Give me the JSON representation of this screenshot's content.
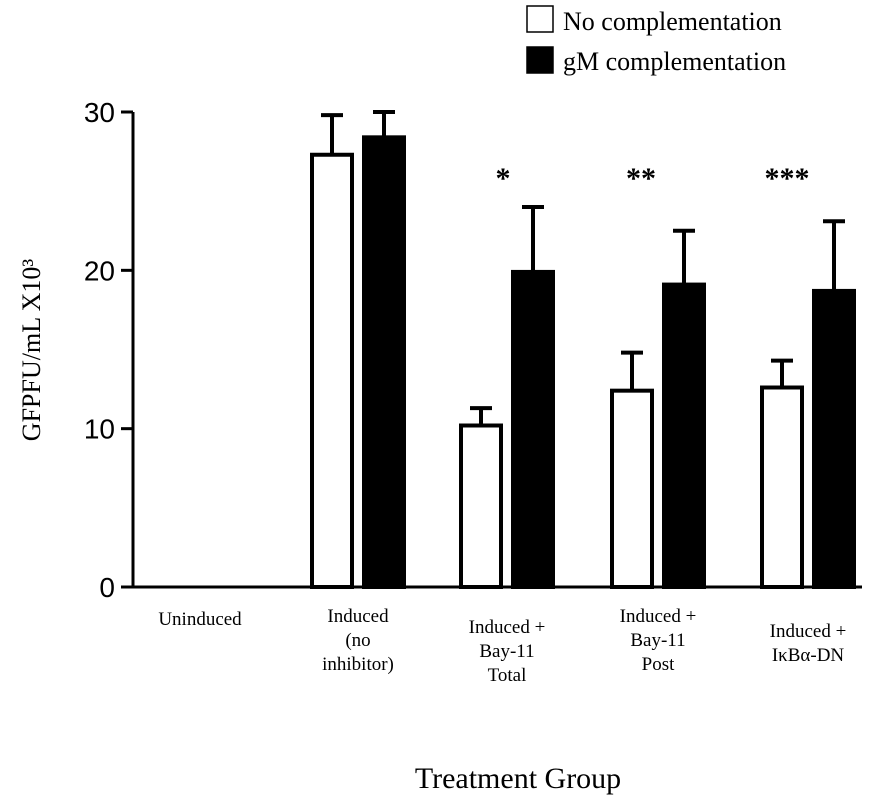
{
  "chart_data": {
    "type": "bar",
    "ylabel": "GFPFU/mL  X10³",
    "xlabel": "Treatment Group",
    "ylim": [
      0,
      30
    ],
    "yticks": [
      "0",
      "10",
      "20",
      "30"
    ],
    "categories": [
      [
        "Uninduced"
      ],
      [
        "Induced",
        "(no",
        "inhibitor)"
      ],
      [
        "Induced +",
        "Bay-11",
        "Total"
      ],
      [
        "Induced +",
        "Bay-11",
        "Post"
      ],
      [
        "Induced +",
        "IκBα-DN"
      ]
    ],
    "series": [
      {
        "name": "No complementation",
        "color": "#ffffff",
        "values": [
          0,
          27.3,
          10.2,
          12.4,
          12.6
        ],
        "errors": [
          0,
          2.5,
          1.1,
          2.4,
          1.7
        ]
      },
      {
        "name": "gM complementation",
        "color": "#000000",
        "values": [
          0,
          28.4,
          19.9,
          19.1,
          18.7
        ],
        "errors": [
          0,
          1.6,
          4.1,
          3.4,
          4.4
        ]
      }
    ],
    "annotations": [
      "",
      "",
      "*",
      "**",
      "***"
    ],
    "legend_position": "top-right"
  }
}
